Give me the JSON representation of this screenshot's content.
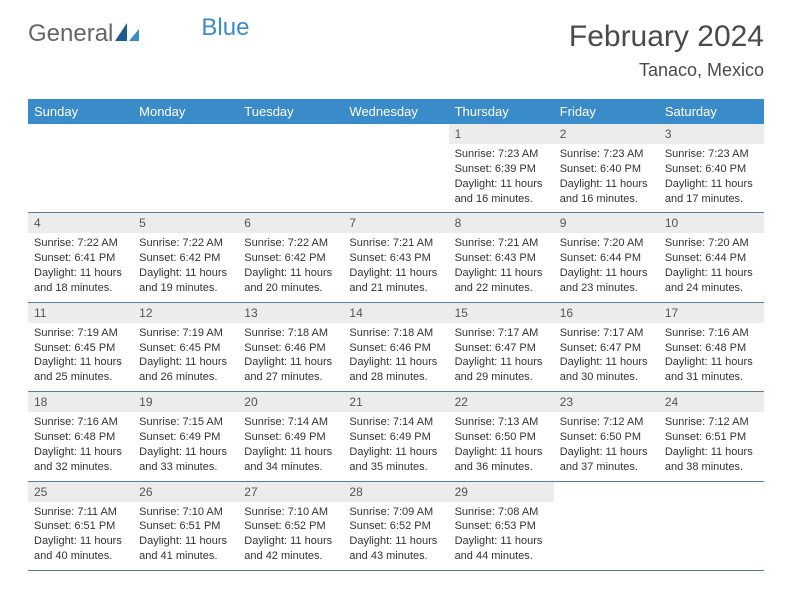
{
  "logo": {
    "text1": "General",
    "text2": "Blue"
  },
  "title": "February 2024",
  "location": "Tanaco, Mexico",
  "colors": {
    "header_bg": "#3a8bc9",
    "header_text": "#ffffff",
    "daynum_bg": "#ececec",
    "border": "#5a7a9a",
    "body_text": "#333333"
  },
  "weekdays": [
    "Sunday",
    "Monday",
    "Tuesday",
    "Wednesday",
    "Thursday",
    "Friday",
    "Saturday"
  ],
  "weeks": [
    [
      null,
      null,
      null,
      null,
      {
        "n": "1",
        "sr": "7:23 AM",
        "ss": "6:39 PM",
        "dl": "11 hours and 16 minutes."
      },
      {
        "n": "2",
        "sr": "7:23 AM",
        "ss": "6:40 PM",
        "dl": "11 hours and 16 minutes."
      },
      {
        "n": "3",
        "sr": "7:23 AM",
        "ss": "6:40 PM",
        "dl": "11 hours and 17 minutes."
      }
    ],
    [
      {
        "n": "4",
        "sr": "7:22 AM",
        "ss": "6:41 PM",
        "dl": "11 hours and 18 minutes."
      },
      {
        "n": "5",
        "sr": "7:22 AM",
        "ss": "6:42 PM",
        "dl": "11 hours and 19 minutes."
      },
      {
        "n": "6",
        "sr": "7:22 AM",
        "ss": "6:42 PM",
        "dl": "11 hours and 20 minutes."
      },
      {
        "n": "7",
        "sr": "7:21 AM",
        "ss": "6:43 PM",
        "dl": "11 hours and 21 minutes."
      },
      {
        "n": "8",
        "sr": "7:21 AM",
        "ss": "6:43 PM",
        "dl": "11 hours and 22 minutes."
      },
      {
        "n": "9",
        "sr": "7:20 AM",
        "ss": "6:44 PM",
        "dl": "11 hours and 23 minutes."
      },
      {
        "n": "10",
        "sr": "7:20 AM",
        "ss": "6:44 PM",
        "dl": "11 hours and 24 minutes."
      }
    ],
    [
      {
        "n": "11",
        "sr": "7:19 AM",
        "ss": "6:45 PM",
        "dl": "11 hours and 25 minutes."
      },
      {
        "n": "12",
        "sr": "7:19 AM",
        "ss": "6:45 PM",
        "dl": "11 hours and 26 minutes."
      },
      {
        "n": "13",
        "sr": "7:18 AM",
        "ss": "6:46 PM",
        "dl": "11 hours and 27 minutes."
      },
      {
        "n": "14",
        "sr": "7:18 AM",
        "ss": "6:46 PM",
        "dl": "11 hours and 28 minutes."
      },
      {
        "n": "15",
        "sr": "7:17 AM",
        "ss": "6:47 PM",
        "dl": "11 hours and 29 minutes."
      },
      {
        "n": "16",
        "sr": "7:17 AM",
        "ss": "6:47 PM",
        "dl": "11 hours and 30 minutes."
      },
      {
        "n": "17",
        "sr": "7:16 AM",
        "ss": "6:48 PM",
        "dl": "11 hours and 31 minutes."
      }
    ],
    [
      {
        "n": "18",
        "sr": "7:16 AM",
        "ss": "6:48 PM",
        "dl": "11 hours and 32 minutes."
      },
      {
        "n": "19",
        "sr": "7:15 AM",
        "ss": "6:49 PM",
        "dl": "11 hours and 33 minutes."
      },
      {
        "n": "20",
        "sr": "7:14 AM",
        "ss": "6:49 PM",
        "dl": "11 hours and 34 minutes."
      },
      {
        "n": "21",
        "sr": "7:14 AM",
        "ss": "6:49 PM",
        "dl": "11 hours and 35 minutes."
      },
      {
        "n": "22",
        "sr": "7:13 AM",
        "ss": "6:50 PM",
        "dl": "11 hours and 36 minutes."
      },
      {
        "n": "23",
        "sr": "7:12 AM",
        "ss": "6:50 PM",
        "dl": "11 hours and 37 minutes."
      },
      {
        "n": "24",
        "sr": "7:12 AM",
        "ss": "6:51 PM",
        "dl": "11 hours and 38 minutes."
      }
    ],
    [
      {
        "n": "25",
        "sr": "7:11 AM",
        "ss": "6:51 PM",
        "dl": "11 hours and 40 minutes."
      },
      {
        "n": "26",
        "sr": "7:10 AM",
        "ss": "6:51 PM",
        "dl": "11 hours and 41 minutes."
      },
      {
        "n": "27",
        "sr": "7:10 AM",
        "ss": "6:52 PM",
        "dl": "11 hours and 42 minutes."
      },
      {
        "n": "28",
        "sr": "7:09 AM",
        "ss": "6:52 PM",
        "dl": "11 hours and 43 minutes."
      },
      {
        "n": "29",
        "sr": "7:08 AM",
        "ss": "6:53 PM",
        "dl": "11 hours and 44 minutes."
      },
      null,
      null
    ]
  ],
  "labels": {
    "sunrise": "Sunrise:",
    "sunset": "Sunset:",
    "daylight": "Daylight:"
  }
}
